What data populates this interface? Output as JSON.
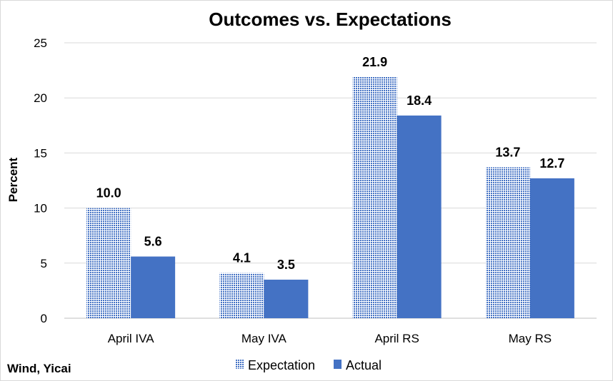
{
  "chart_data": {
    "type": "bar",
    "title": "Outcomes vs. Expectations",
    "ylabel": "Percent",
    "xlabel": "",
    "categories": [
      "April IVA",
      "May IVA",
      "April RS",
      "May RS"
    ],
    "ylim": [
      0,
      25
    ],
    "yticks": [
      "0",
      "5",
      "10",
      "15",
      "20",
      "25"
    ],
    "grid": true,
    "legend_position": "bottom",
    "series": [
      {
        "name": "Expectation",
        "values": [
          10.0,
          4.1,
          21.9,
          13.7
        ],
        "labels": [
          "10.0",
          "4.1",
          "21.9",
          "13.7"
        ],
        "color": "#4472c4",
        "pattern": "dotted"
      },
      {
        "name": "Actual",
        "values": [
          5.6,
          3.5,
          18.4,
          12.7
        ],
        "labels": [
          "5.6",
          "3.5",
          "18.4",
          "12.7"
        ],
        "color": "#4472c4",
        "pattern": "solid"
      }
    ]
  },
  "source": "Wind, Yicai"
}
